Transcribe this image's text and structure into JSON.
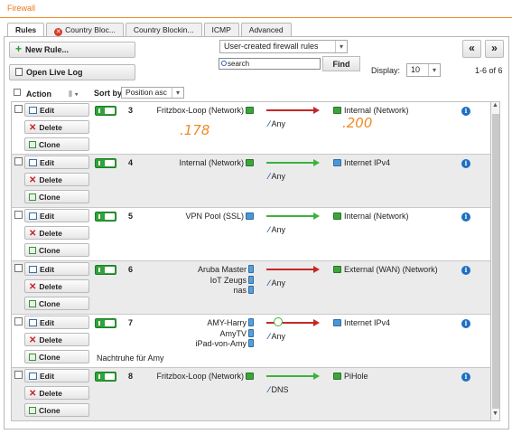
{
  "window_title": "Firewall",
  "tabs": [
    {
      "label": "Rules",
      "active": true,
      "error": false
    },
    {
      "label": "Country Bloc...",
      "active": false,
      "error": true
    },
    {
      "label": "Country Blockin...",
      "active": false,
      "error": false
    },
    {
      "label": "ICMP",
      "active": false,
      "error": false
    },
    {
      "label": "Advanced",
      "active": false,
      "error": false
    }
  ],
  "toolbar": {
    "new_rule_label": "New Rule...",
    "live_log_label": "Open Live Log",
    "filter_select": "User-created firewall rules",
    "search_placeholder": "search",
    "find_label": "Find",
    "display_label": "Display:",
    "display_value": "10",
    "page_info": "1-6 of 6",
    "prev_label": "«",
    "next_label": "»"
  },
  "table_header": {
    "action_label": "Action",
    "sortby_label": "Sort by:",
    "sort_value": "Position asc"
  },
  "action_labels": {
    "edit": "Edit",
    "delete": "Delete",
    "clone": "Clone"
  },
  "rules": [
    {
      "position": "3",
      "enabled": true,
      "sources": [
        {
          "name": "Fritzbox-Loop (Network)",
          "type": "network"
        }
      ],
      "service": "Any",
      "action": "drop",
      "destination": {
        "name": "Internal (Network)",
        "type": "network"
      },
      "comment": "",
      "annotations": [
        ".178",
        ".200"
      ]
    },
    {
      "position": "4",
      "enabled": true,
      "sources": [
        {
          "name": "Internal (Network)",
          "type": "network"
        }
      ],
      "service": "Any",
      "action": "allow",
      "destination": {
        "name": "Internet IPv4",
        "type": "internet"
      },
      "comment": ""
    },
    {
      "position": "5",
      "enabled": true,
      "sources": [
        {
          "name": "VPN Pool (SSL)",
          "type": "internet"
        }
      ],
      "service": "Any",
      "action": "allow",
      "destination": {
        "name": "Internal (Network)",
        "type": "network"
      },
      "comment": ""
    },
    {
      "position": "6",
      "enabled": true,
      "sources": [
        {
          "name": "Aruba Master",
          "type": "host"
        },
        {
          "name": "IoT Zeugs",
          "type": "host"
        },
        {
          "name": "nas",
          "type": "host"
        }
      ],
      "service": "Any",
      "action": "drop",
      "destination": {
        "name": "External (WAN) (Network)",
        "type": "network"
      },
      "comment": ""
    },
    {
      "position": "7",
      "enabled": true,
      "sources": [
        {
          "name": "AMY-Harry",
          "type": "host"
        },
        {
          "name": "AmyTV",
          "type": "host"
        },
        {
          "name": "iPad-von-Amy",
          "type": "host"
        }
      ],
      "service": "Any",
      "action": "scheduled-drop",
      "destination": {
        "name": "Internet IPv4",
        "type": "internet"
      },
      "comment": "Nachtruhe für Amy"
    },
    {
      "position": "8",
      "enabled": true,
      "sources": [
        {
          "name": "Fritzbox-Loop (Network)",
          "type": "network"
        }
      ],
      "service": "DNS",
      "action": "allow",
      "destination": {
        "name": "PiHole",
        "type": "network"
      },
      "comment": ""
    }
  ],
  "info_symbol": "i",
  "colors": {
    "accent": "#e8791d",
    "allow": "#3bb33b",
    "drop": "#c52828",
    "toggle": "#2fa23a",
    "info": "#1d6fc4"
  }
}
